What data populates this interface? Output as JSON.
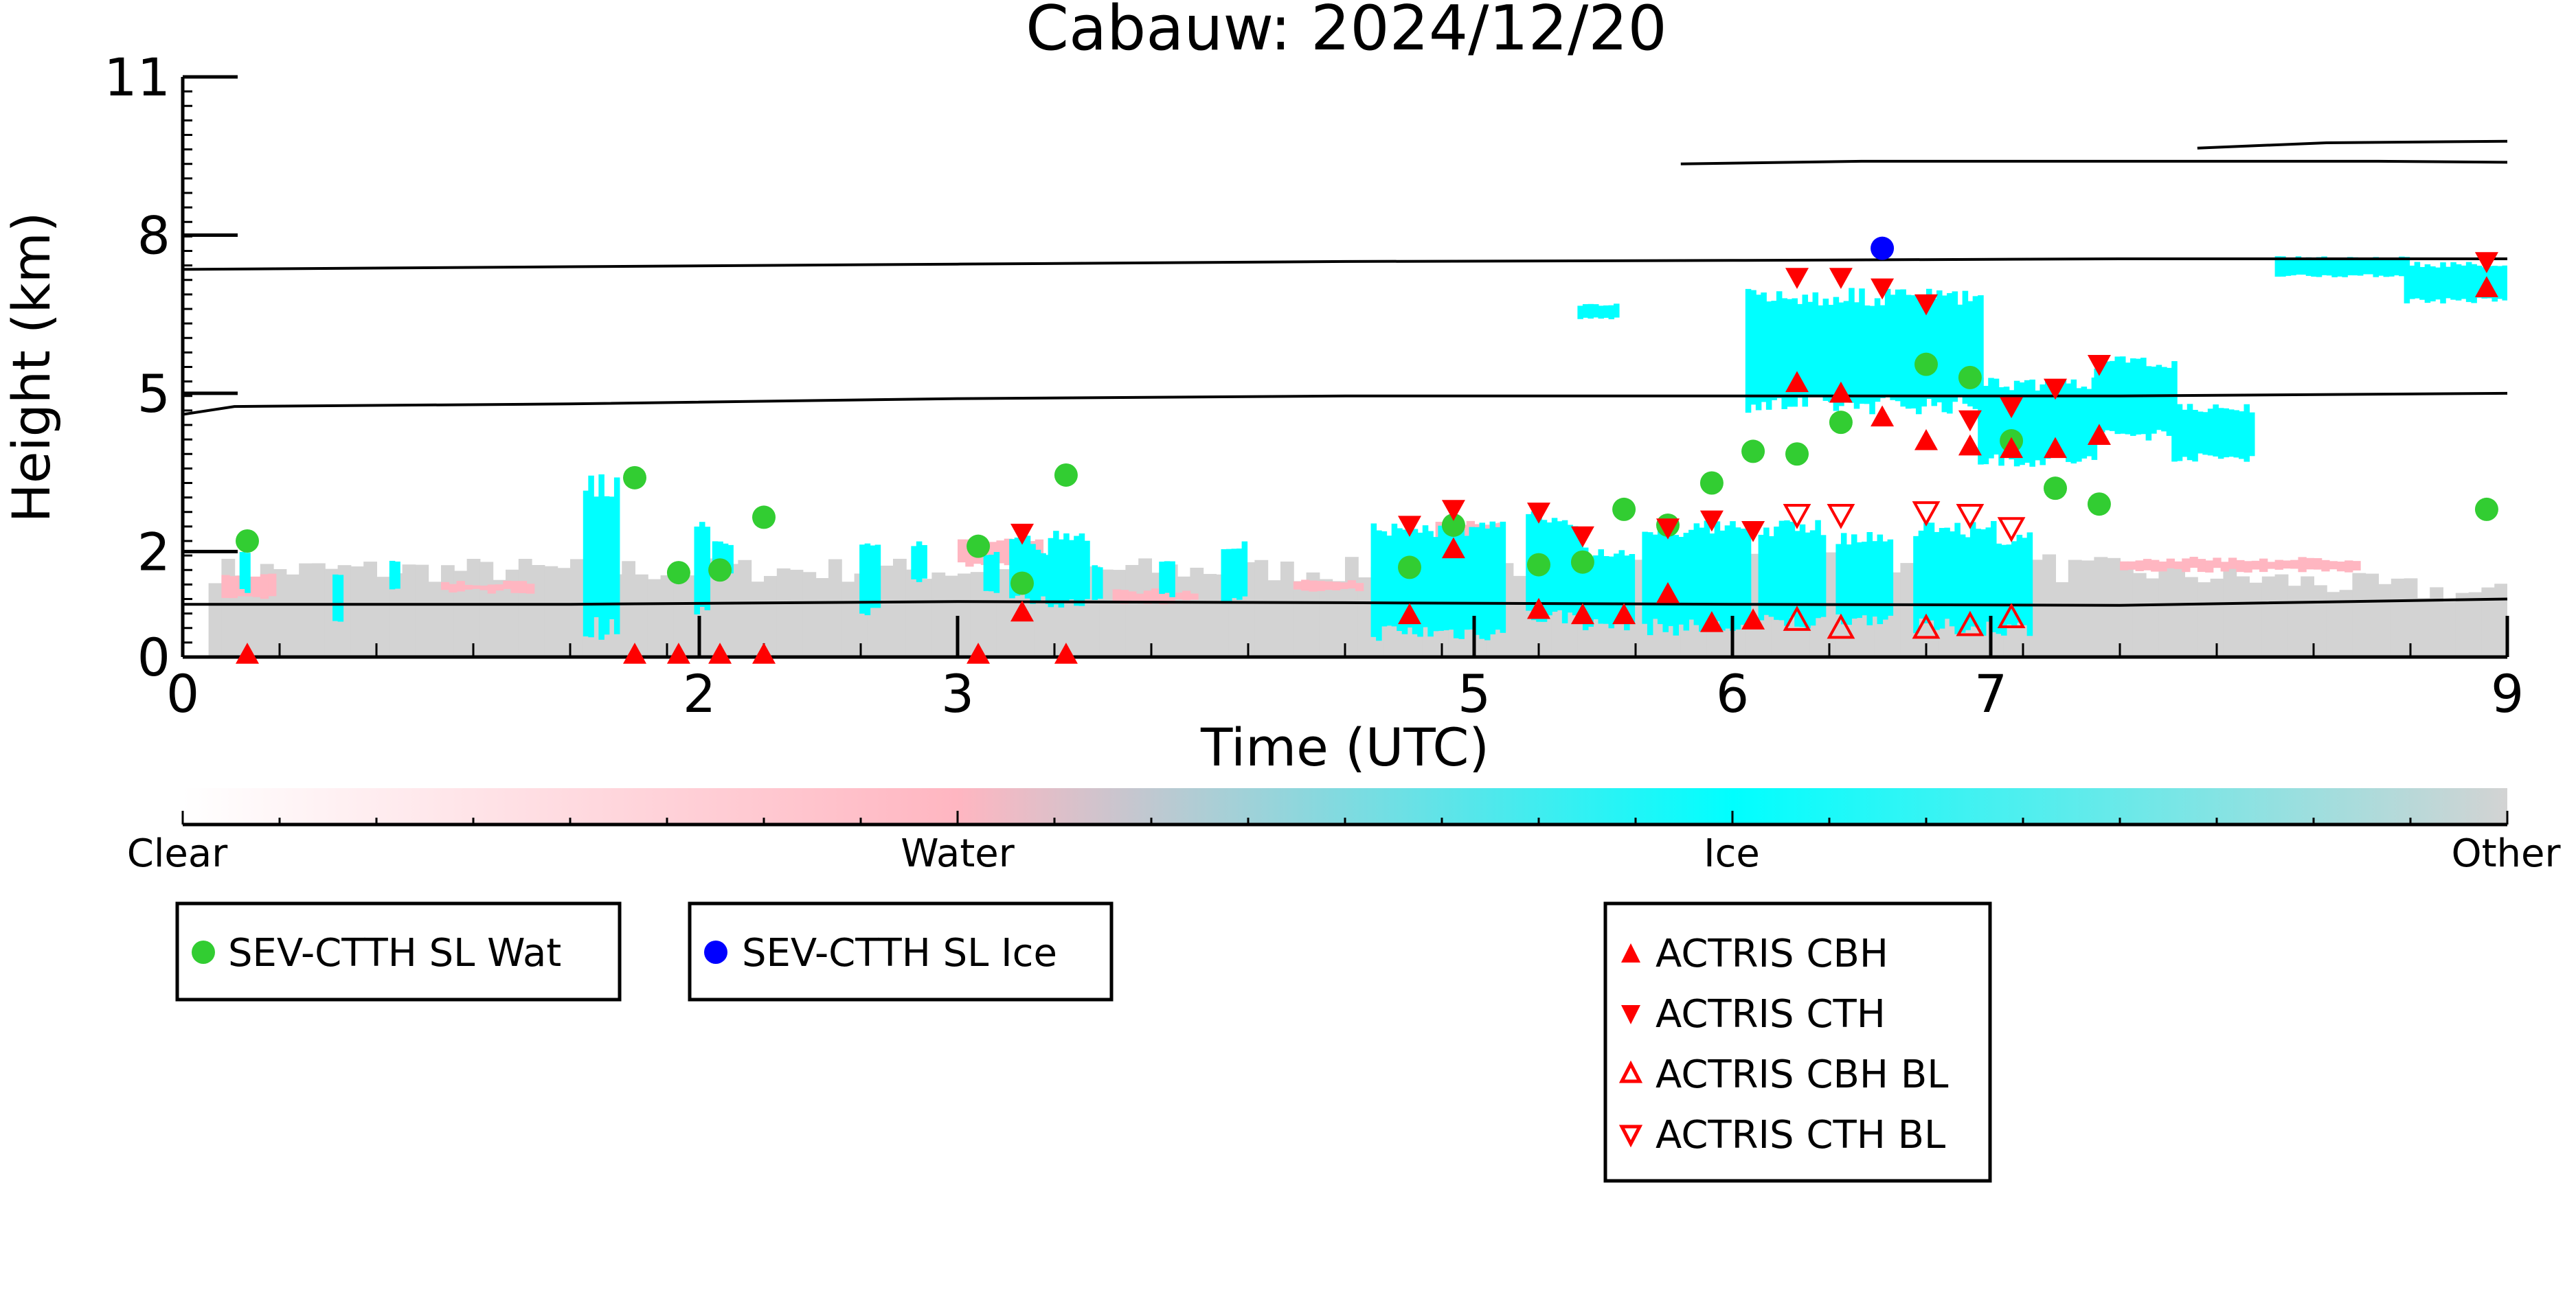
{
  "chart_data": {
    "type": "scatter",
    "title": "Cabauw: 2024/12/20",
    "xlabel": "Time (UTC)",
    "ylabel": "Height (km)",
    "xlim": [
      0,
      9
    ],
    "ylim": [
      0,
      11
    ],
    "xticks": [
      0,
      2,
      3,
      5,
      6,
      7,
      9
    ],
    "xticks_minor_step": 0.375,
    "yticks": [
      0,
      2,
      5,
      8,
      11
    ],
    "yticks_minor_step": 0.275,
    "grid": false,
    "colors": {
      "clear": "#ffffff",
      "water": "#ffb6c1",
      "ice": "#00ffff",
      "other": "#d3d3d3",
      "sl_wat": "#32cd32",
      "sl_ice": "#0000ff",
      "actris": "#ff0000"
    },
    "colorbar": {
      "labels": [
        "Clear",
        "Water",
        "Ice",
        "Other"
      ],
      "stops": [
        0,
        0.333,
        0.667,
        1
      ]
    },
    "series": [
      {
        "name": "SEV-CTTH SL Wat",
        "marker": "filled-circle",
        "color": "#32cd32",
        "x": [
          0.25,
          1.75,
          1.92,
          2.08,
          2.25,
          3.08,
          3.25,
          3.42,
          4.75,
          4.92,
          5.25,
          5.42,
          5.58,
          5.75,
          5.92,
          6.08,
          6.25,
          6.42,
          6.75,
          6.92,
          7.08,
          7.25,
          7.42,
          8.92
        ],
        "y": [
          2.2,
          3.4,
          1.6,
          1.65,
          2.65,
          2.1,
          1.4,
          3.45,
          1.7,
          2.5,
          1.75,
          1.8,
          2.8,
          2.5,
          3.3,
          3.9,
          3.85,
          4.45,
          5.55,
          5.3,
          4.1,
          3.2,
          2.9,
          2.8
        ]
      },
      {
        "name": "SEV-CTTH SL Ice",
        "marker": "filled-circle",
        "color": "#0000ff",
        "x": [
          6.58
        ],
        "y": [
          7.75
        ]
      },
      {
        "name": "ACTRIS CBH",
        "marker": "filled-triangle-up",
        "color": "#ff0000",
        "x": [
          0.25,
          1.75,
          1.92,
          2.08,
          2.25,
          3.08,
          3.25,
          3.42,
          4.75,
          4.92,
          5.25,
          5.42,
          5.58,
          5.75,
          5.92,
          6.08,
          6.25,
          6.42,
          6.58,
          6.75,
          6.92,
          7.08,
          7.25,
          7.42,
          8.92
        ],
        "y": [
          0.05,
          0.05,
          0.05,
          0.05,
          0.05,
          0.05,
          0.85,
          0.05,
          0.8,
          2.05,
          0.9,
          0.8,
          0.8,
          1.2,
          0.65,
          0.7,
          5.2,
          5.0,
          4.55,
          4.1,
          4.0,
          3.95,
          3.95,
          4.2,
          7.0
        ]
      },
      {
        "name": "ACTRIS CTH",
        "marker": "filled-triangle-down",
        "color": "#ff0000",
        "x": [
          3.25,
          4.75,
          4.92,
          5.25,
          5.42,
          5.75,
          5.92,
          6.08,
          6.25,
          6.42,
          6.58,
          6.75,
          6.92,
          7.08,
          7.25,
          7.42,
          8.92
        ],
        "y": [
          2.35,
          2.5,
          2.8,
          2.75,
          2.3,
          2.45,
          2.6,
          2.4,
          7.2,
          7.2,
          7.0,
          6.7,
          4.5,
          4.75,
          5.1,
          5.55,
          7.5
        ]
      },
      {
        "name": "ACTRIS CBH BL",
        "marker": "open-triangle-up",
        "color": "#ff0000",
        "x": [
          6.25,
          6.42,
          6.75,
          6.92,
          7.08
        ],
        "y": [
          0.7,
          0.55,
          0.55,
          0.6,
          0.75
        ]
      },
      {
        "name": "ACTRIS CTH BL",
        "marker": "open-triangle-down",
        "color": "#ff0000",
        "x": [
          6.25,
          6.42,
          6.75,
          6.92,
          7.08
        ],
        "y": [
          2.7,
          2.7,
          2.75,
          2.7,
          2.45
        ]
      }
    ],
    "contours": [
      {
        "x": [
          0,
          1.5,
          3,
          4.5,
          6,
          7.5,
          9
        ],
        "y": [
          1.0,
          1.0,
          1.05,
          1.03,
          1.0,
          0.98,
          1.1
        ]
      },
      {
        "x": [
          0,
          0.2,
          1.5,
          3,
          4.5,
          6,
          7.5,
          9
        ],
        "y": [
          4.6,
          4.75,
          4.8,
          4.9,
          4.95,
          4.95,
          4.95,
          5.0
        ]
      },
      {
        "x": [
          0,
          1.5,
          3,
          4.5,
          6,
          7.5,
          9
        ],
        "y": [
          7.35,
          7.4,
          7.45,
          7.5,
          7.52,
          7.55,
          7.55
        ]
      },
      {
        "x": [
          5.8,
          6.5,
          7.2,
          7.8,
          8.5,
          9
        ],
        "y": [
          9.35,
          9.4,
          9.4,
          9.4,
          9.4,
          9.38
        ]
      },
      {
        "x": [
          7.8,
          8.3,
          9
        ],
        "y": [
          9.65,
          9.75,
          9.78
        ]
      }
    ],
    "legends": [
      {
        "entries": [
          "SEV-CTTH SL Wat"
        ],
        "placement": "below-left"
      },
      {
        "entries": [
          "SEV-CTTH SL Ice"
        ],
        "placement": "below-center-left"
      },
      {
        "entries": [
          "ACTRIS CBH",
          "ACTRIS CTH",
          "ACTRIS CBH BL",
          "ACTRIS CTH BL"
        ],
        "placement": "below-right"
      }
    ]
  }
}
